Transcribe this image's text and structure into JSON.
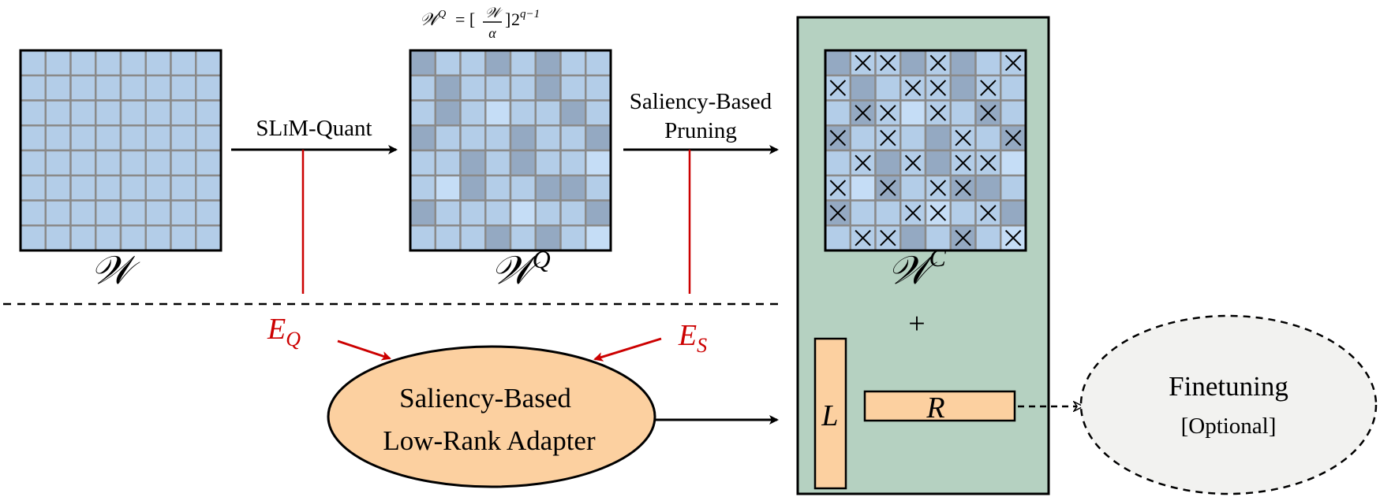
{
  "matrices": {
    "w": {
      "label": "𝒲",
      "cells": [
        "LLLLLLLL",
        "LLLLLLLL",
        "LLLLLLLL",
        "LLLLLLLL",
        "LLLLLLLL",
        "LLLLLLLL",
        "LLLLLLLL",
        "LLLLLLLL"
      ]
    },
    "wq": {
      "label": "𝒲",
      "label_sup": "Q",
      "formula": {
        "lhs": "𝒲",
        "lhs_sup": "Q",
        "eq": "= [",
        "frac_num": "𝒲",
        "frac_den": "α",
        "close": "]",
        "base": "2",
        "exp": "q−1"
      },
      "cells": [
        "DLLDLDLL",
        "LDLLLDLL",
        "LDLVLLDL",
        "DLLLDLLD",
        "LLDLDLLV",
        "LVDLLDDL",
        "DLLLVLLD",
        "LLLDLDLV"
      ]
    },
    "wc": {
      "label": "𝒲",
      "label_sup": "C",
      "cells": [
        "DLLDLDLL",
        "LDLLLDLL",
        "LDLVLLDL",
        "DLLLDLLD",
        "LLDLDLLV",
        "LVDLLDDL",
        "DLLLVLLD",
        "LLLDLDLV"
      ],
      "pruned": [
        [
          0,
          1
        ],
        [
          0,
          2
        ],
        [
          0,
          4
        ],
        [
          0,
          7
        ],
        [
          1,
          0
        ],
        [
          1,
          3
        ],
        [
          1,
          4
        ],
        [
          1,
          6
        ],
        [
          2,
          1
        ],
        [
          2,
          2
        ],
        [
          2,
          4
        ],
        [
          2,
          6
        ],
        [
          3,
          0
        ],
        [
          3,
          2
        ],
        [
          3,
          5
        ],
        [
          3,
          7
        ],
        [
          4,
          1
        ],
        [
          4,
          3
        ],
        [
          4,
          5
        ],
        [
          4,
          6
        ],
        [
          5,
          0
        ],
        [
          5,
          2
        ],
        [
          5,
          4
        ],
        [
          5,
          5
        ],
        [
          6,
          0
        ],
        [
          6,
          3
        ],
        [
          6,
          4
        ],
        [
          6,
          6
        ],
        [
          7,
          1
        ],
        [
          7,
          2
        ],
        [
          7,
          5
        ],
        [
          7,
          7
        ]
      ]
    }
  },
  "steps": {
    "quant_label": "SLIM-Quant",
    "quant_label_a": "SL",
    "quant_label_b": "I",
    "quant_label_c": "M-Quant",
    "prune_label_line1": "Saliency-Based",
    "prune_label_line2": "Pruning"
  },
  "errors": {
    "eq_main": "E",
    "eq_sub": "Q",
    "es_main": "E",
    "es_sub": "S"
  },
  "adapter": {
    "line1": "Saliency-Based",
    "line2": "Low-Rank Adapter"
  },
  "lowrank": {
    "plus": "+",
    "l": "L",
    "r": "R"
  },
  "finetune": {
    "line1": "Finetuning",
    "line2": "[Optional]"
  },
  "colors": {
    "cell_light": "#b3cde8",
    "cell_dark": "#94a9c2",
    "cell_pale": "#c5ddf6",
    "grid": "#8a8a8a",
    "panel": "#b5d1c1",
    "orange": "#fcd0a0",
    "error_red": "#cc0000",
    "finetune_fill": "#f2f2f0"
  }
}
